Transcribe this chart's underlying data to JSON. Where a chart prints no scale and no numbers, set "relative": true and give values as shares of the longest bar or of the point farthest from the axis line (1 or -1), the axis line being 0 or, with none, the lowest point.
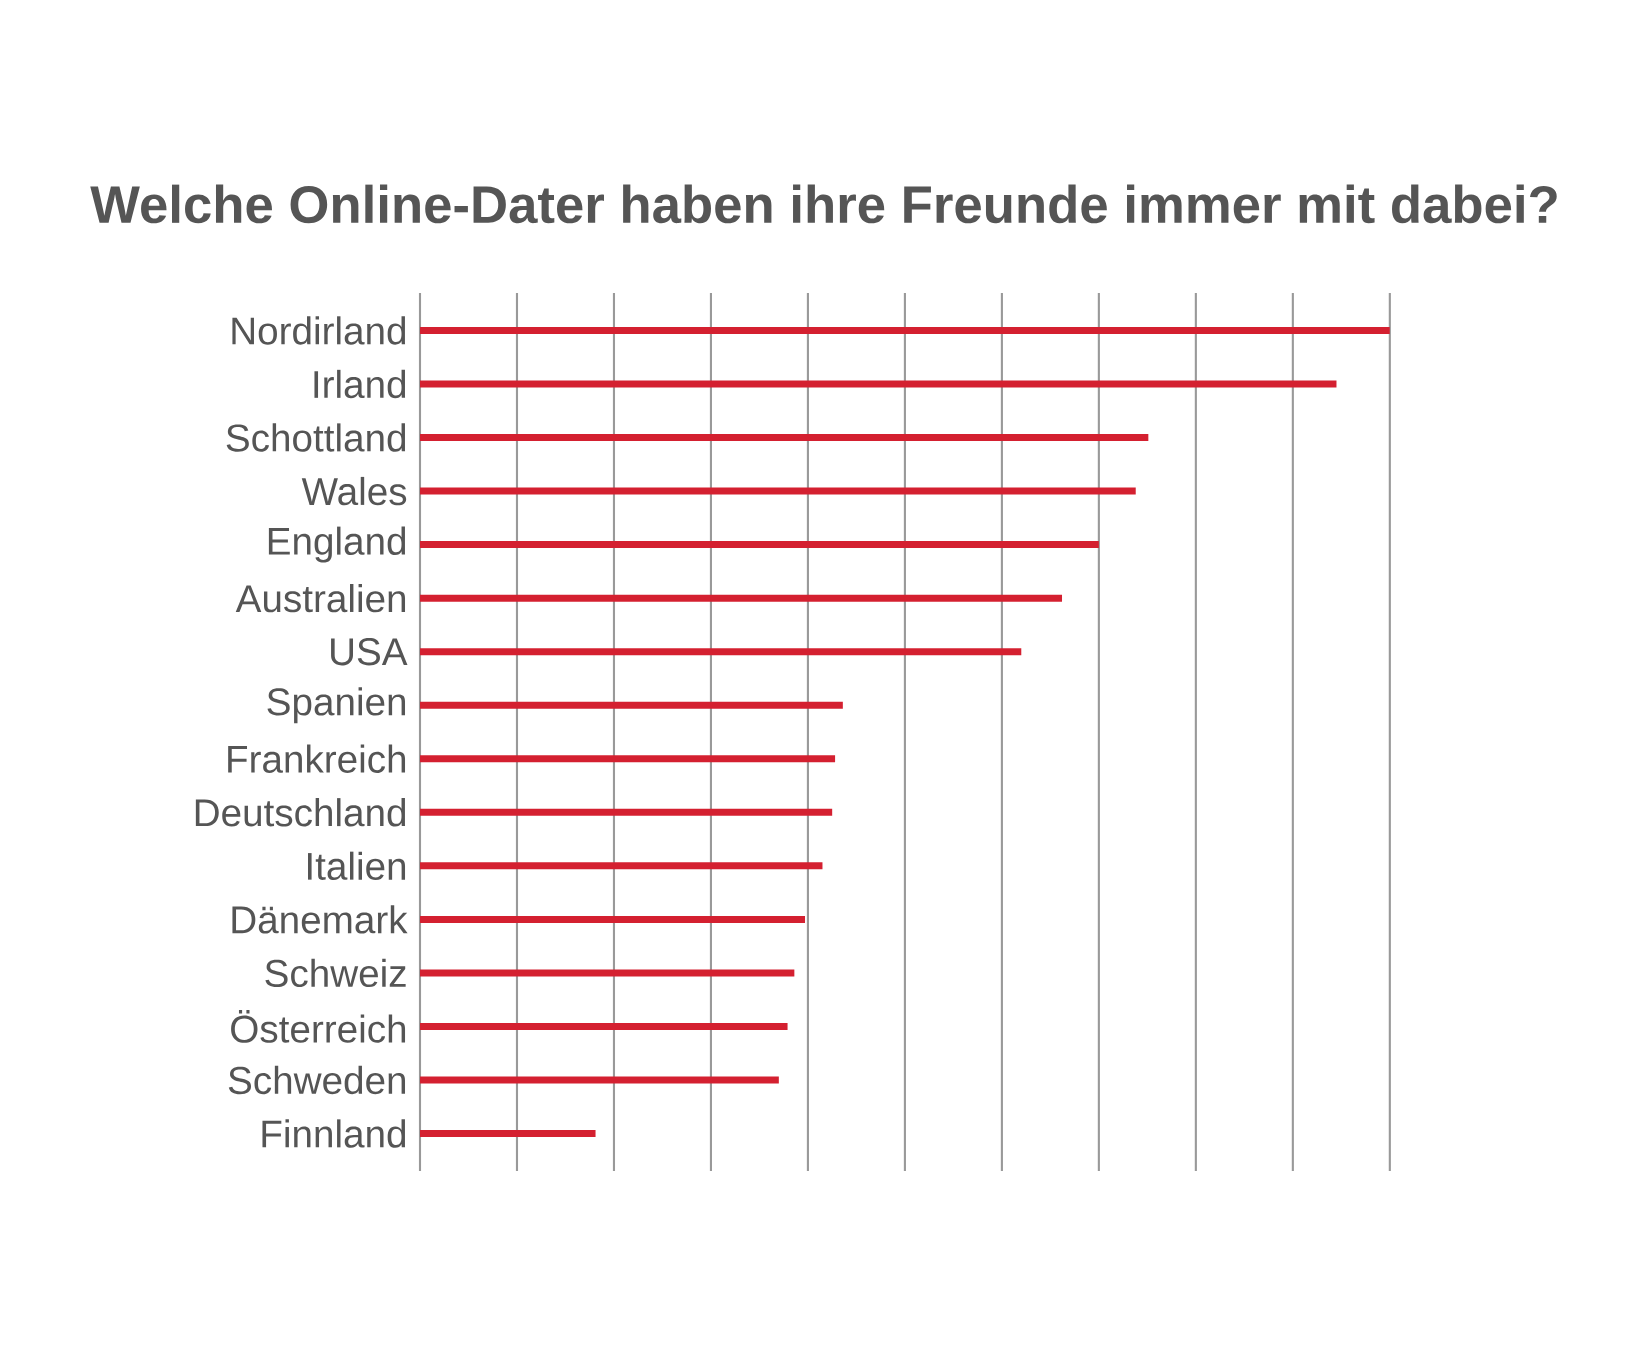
{
  "chart_data": {
    "type": "bar",
    "orientation": "horizontal",
    "relative": true,
    "title": "Welche Online-Dater haben ihre Freunde immer mit dabei?",
    "categories": [
      "Nordirland",
      "Irland",
      "Schottland",
      "Wales",
      "England",
      "Australien",
      "USA",
      "Spanien",
      "Frankreich",
      "Deutschland",
      "Italien",
      "Dänemark",
      "Schweiz",
      "Österreich",
      "Schweden",
      "Finnland"
    ],
    "values": [
      1.0,
      0.945,
      0.751,
      0.738,
      0.7,
      0.662,
      0.62,
      0.436,
      0.428,
      0.425,
      0.415,
      0.397,
      0.386,
      0.379,
      0.37,
      0.181
    ],
    "color": "#d42030",
    "grid": "x",
    "tick_labels": "y"
  }
}
